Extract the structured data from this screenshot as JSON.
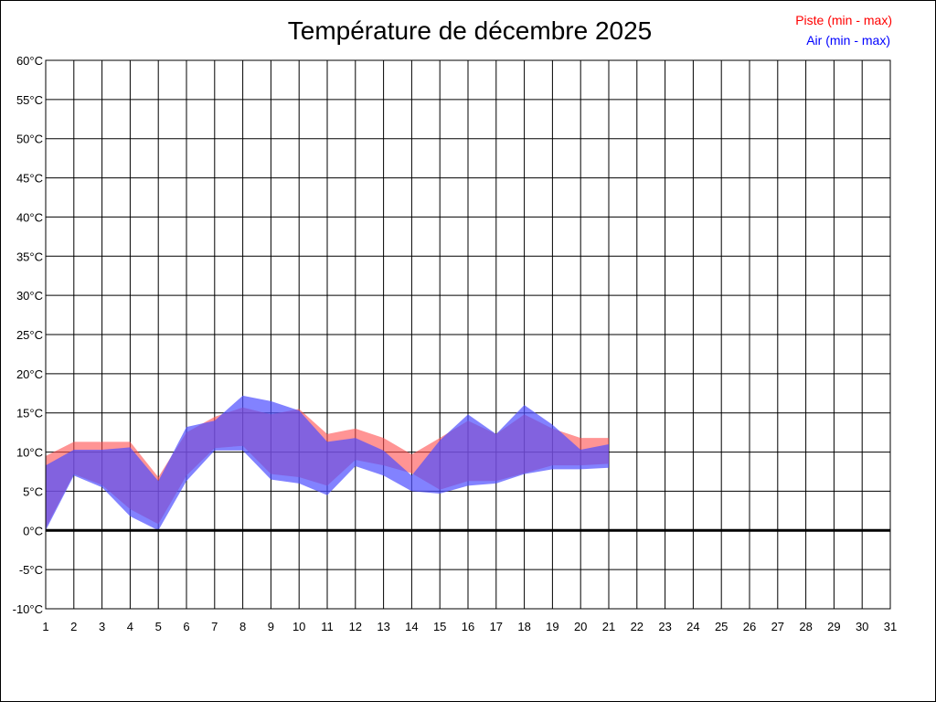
{
  "chart_data": {
    "type": "area",
    "title": "Température de décembre 2025",
    "xlabel": "",
    "ylabel": "",
    "xlim": [
      1,
      31
    ],
    "ylim": [
      -10,
      60
    ],
    "x_ticks": [
      "1",
      "2",
      "3",
      "4",
      "5",
      "6",
      "7",
      "8",
      "9",
      "10",
      "11",
      "12",
      "13",
      "14",
      "15",
      "16",
      "17",
      "18",
      "19",
      "20",
      "21",
      "22",
      "23",
      "24",
      "25",
      "26",
      "27",
      "28",
      "29",
      "30",
      "31"
    ],
    "y_ticks": [
      "60°C",
      "55°C",
      "50°C",
      "45°C",
      "40°C",
      "35°C",
      "30°C",
      "25°C",
      "20°C",
      "15°C",
      "10°C",
      "5°C",
      "0°C",
      "-5°C",
      "-10°C"
    ],
    "y_tick_values": [
      60,
      55,
      50,
      45,
      40,
      35,
      30,
      25,
      20,
      15,
      10,
      5,
      0,
      -5,
      -10
    ],
    "grid": true,
    "legend_position": "top-right",
    "x": [
      1,
      2,
      3,
      4,
      5,
      6,
      7,
      8,
      9,
      10,
      11,
      12,
      13,
      14,
      15,
      16,
      17,
      18,
      19,
      20,
      21
    ],
    "series": [
      {
        "name": "Piste (min - max)",
        "color": "#ff0000",
        "fill": "#ff4d4d",
        "opacity": 0.6,
        "min": [
          0.3,
          7.2,
          5.8,
          2.7,
          0.8,
          7.0,
          10.5,
          10.8,
          7.2,
          6.8,
          5.7,
          9.0,
          8.3,
          7.3,
          5.2,
          6.3,
          6.3,
          7.3,
          8.3,
          8.3,
          8.5
        ],
        "max": [
          9.5,
          11.3,
          11.3,
          11.3,
          6.8,
          12.5,
          14.5,
          15.7,
          14.8,
          15.5,
          12.3,
          13.0,
          11.8,
          9.7,
          11.8,
          14.0,
          12.3,
          14.8,
          13.0,
          11.8,
          11.8
        ]
      },
      {
        "name": "Air (min - max)",
        "color": "#0000ff",
        "fill": "#4d4dff",
        "opacity": 0.7,
        "min": [
          0.0,
          7.0,
          5.5,
          1.8,
          0.0,
          6.3,
          10.2,
          10.2,
          6.5,
          6.0,
          4.5,
          8.2,
          7.0,
          5.0,
          4.7,
          5.7,
          6.0,
          7.2,
          7.8,
          7.8,
          8.0
        ],
        "max": [
          8.3,
          10.3,
          10.3,
          10.6,
          6.3,
          13.2,
          14.0,
          17.2,
          16.5,
          15.3,
          11.3,
          11.8,
          10.2,
          7.0,
          11.5,
          14.8,
          12.3,
          16.0,
          13.5,
          10.3,
          11.0
        ]
      }
    ]
  }
}
